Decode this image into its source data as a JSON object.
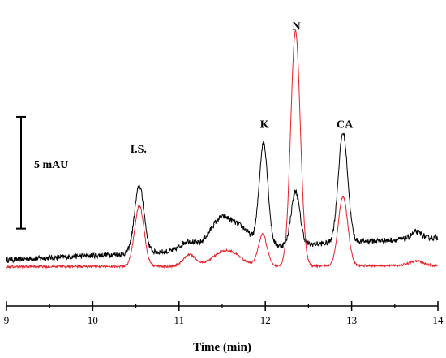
{
  "chart_data": {
    "type": "line",
    "xlabel": "Time (min)",
    "xlim": [
      9,
      14
    ],
    "x_ticks": [
      9,
      10,
      11,
      12,
      13,
      14
    ],
    "ylim": [
      -0.3,
      11.5
    ],
    "scale_bar": {
      "label": "5 mAU",
      "value": 5,
      "from": 2,
      "to": 7
    },
    "peak_labels": [
      {
        "text": "I.S.",
        "x": 10.53,
        "y": 5.4
      },
      {
        "text": "K",
        "x": 11.99,
        "y": 6.5
      },
      {
        "text": "N",
        "x": 12.36,
        "y": 10.9
      },
      {
        "text": "CA",
        "x": 12.92,
        "y": 6.5
      }
    ],
    "series": [
      {
        "color": "#000000",
        "baseline": {
          "start": 0.6,
          "end": 1.6
        },
        "noise": 0.12,
        "peaks": [
          {
            "center": 10.54,
            "height": 3.0,
            "width": 0.055
          },
          {
            "center": 11.1,
            "height": 0.4,
            "width": 0.08
          },
          {
            "center": 11.5,
            "height": 1.4,
            "width": 0.14
          },
          {
            "center": 11.75,
            "height": 0.6,
            "width": 0.1
          },
          {
            "center": 11.98,
            "height": 4.6,
            "width": 0.05
          },
          {
            "center": 12.35,
            "height": 2.4,
            "width": 0.05
          },
          {
            "center": 12.9,
            "height": 4.9,
            "width": 0.055
          },
          {
            "center": 13.75,
            "height": 0.3,
            "width": 0.06
          }
        ]
      },
      {
        "color": "#e8202a",
        "baseline": {
          "start": 0.3,
          "end": 0.35
        },
        "noise": 0.05,
        "peaks": [
          {
            "center": 10.54,
            "height": 2.7,
            "width": 0.055
          },
          {
            "center": 11.12,
            "height": 0.5,
            "width": 0.07
          },
          {
            "center": 11.55,
            "height": 0.7,
            "width": 0.15
          },
          {
            "center": 11.97,
            "height": 1.4,
            "width": 0.05
          },
          {
            "center": 12.35,
            "height": 10.5,
            "width": 0.055
          },
          {
            "center": 12.9,
            "height": 3.1,
            "width": 0.055
          },
          {
            "center": 13.75,
            "height": 0.2,
            "width": 0.08
          }
        ]
      }
    ]
  }
}
